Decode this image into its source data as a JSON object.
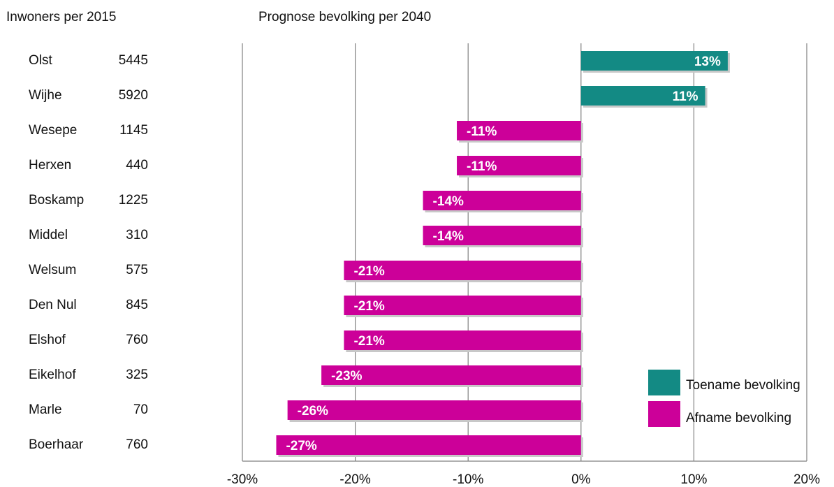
{
  "header": {
    "left_title": "Inwoners per 2015",
    "right_title": "Prognose bevolking per 2040"
  },
  "rows": [
    {
      "name": "Olst",
      "population": "5445"
    },
    {
      "name": "Wijhe",
      "population": "5920"
    },
    {
      "name": "Wesepe",
      "population": "1145"
    },
    {
      "name": "Herxen",
      "population": "440"
    },
    {
      "name": "Boskamp",
      "population": "1225"
    },
    {
      "name": "Middel",
      "population": "310"
    },
    {
      "name": "Welsum",
      "population": "575"
    },
    {
      "name": "Den Nul",
      "population": "845"
    },
    {
      "name": "Elshof",
      "population": "760"
    },
    {
      "name": "Eikelhof",
      "population": "325"
    },
    {
      "name": "Marle",
      "population": "70"
    },
    {
      "name": "Boerhaar",
      "population": "760"
    }
  ],
  "legend": {
    "increase": "Toename bevolking",
    "decrease": "Afname bevolking"
  },
  "colors": {
    "increase": "#138a84",
    "decrease": "#cc0099",
    "grid": "#808080"
  },
  "chart_data": {
    "type": "bar",
    "orientation": "horizontal",
    "title": "Prognose bevolking per 2040",
    "categories": [
      "Olst",
      "Wijhe",
      "Wesepe",
      "Herxen",
      "Boskamp",
      "Middel",
      "Welsum",
      "Den Nul",
      "Elshof",
      "Eikelhof",
      "Marle",
      "Boerhaar"
    ],
    "values": [
      13,
      11,
      -11,
      -11,
      -14,
      -14,
      -21,
      -21,
      -21,
      -23,
      -26,
      -27
    ],
    "value_labels": [
      "13%",
      "11%",
      "-11%",
      "-11%",
      "-14%",
      "-14%",
      "-21%",
      "-21%",
      "-21%",
      "-23%",
      "-26%",
      "-27%"
    ],
    "xlim": [
      -30,
      20
    ],
    "xticks": [
      -30,
      -20,
      -10,
      0,
      10,
      20
    ],
    "xtick_labels": [
      "-30%",
      "-20%",
      "-10%",
      "0%",
      "10%",
      "20%"
    ],
    "grid": true,
    "legend_position": "bottom-right"
  }
}
